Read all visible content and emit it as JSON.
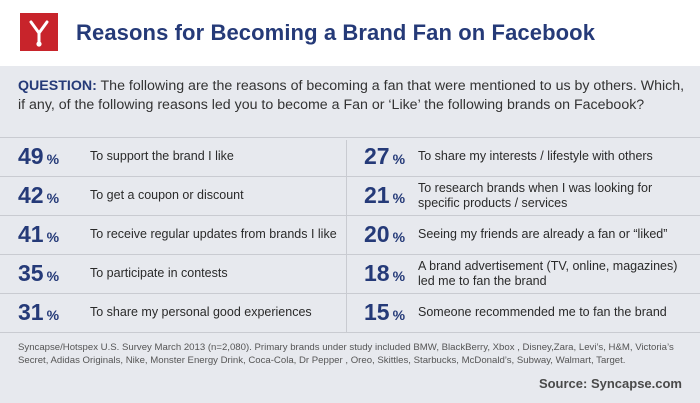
{
  "header": {
    "title": "Reasons for Becoming a Brand Fan on Facebook"
  },
  "question": {
    "lead": "QUESTION:",
    "text": "The following are the reasons of becoming a fan that were mentioned to us by others. Which, if any, of the following reasons led you to become a Fan or ‘Like’ the following brands on Facebook?"
  },
  "chart_data": {
    "type": "table",
    "title": "Reasons for Becoming a Brand Fan on Facebook",
    "unit": "%",
    "categories": [
      "To support the brand I like",
      "To get a coupon or discount",
      "To receive regular updates from brands I like",
      "To participate in contests",
      "To share my personal good experiences",
      "To share my interests / lifestyle with others",
      "To research brands when I was looking for specific products / services",
      "Seeing my friends are already a fan or “liked”",
      "A brand advertisement (TV, online, magazines) led me to fan the brand",
      "Someone recommended me to fan the brand"
    ],
    "values": [
      49,
      42,
      41,
      35,
      31,
      27,
      21,
      20,
      18,
      15
    ],
    "left": [
      {
        "value": "49",
        "unit": "%",
        "label": "To support the brand I like"
      },
      {
        "value": "42",
        "unit": "%",
        "label": "To get a coupon or discount"
      },
      {
        "value": "41",
        "unit": "%",
        "label": "To receive regular updates from brands I like"
      },
      {
        "value": "35",
        "unit": "%",
        "label": "To participate in contests"
      },
      {
        "value": "31",
        "unit": "%",
        "label": "To share my personal good experiences"
      }
    ],
    "right": [
      {
        "value": "27",
        "unit": "%",
        "label": "To share my interests / lifestyle with others"
      },
      {
        "value": "21",
        "unit": "%",
        "label": "To research brands when I was looking for specific products / services"
      },
      {
        "value": "20",
        "unit": "%",
        "label": "Seeing my friends are already a fan or “liked”"
      },
      {
        "value": "18",
        "unit": "%",
        "label": "A brand advertisement (TV, online, magazines) led me to fan the brand"
      },
      {
        "value": "15",
        "unit": "%",
        "label": "Someone recommended me to fan the brand"
      }
    ]
  },
  "footnote": "Syncapse/Hotspex U.S. Survey March 2013 (n=2,080). Primary brands under study included BMW, BlackBerry,  Xbox , Disney,Zara, Levi’s, H&M, Victoria’s Secret, Adidas Originals, Nike, Monster Energy Drink, Coca-Cola, Dr Pepper , Oreo, Skittles, Starbucks, McDonald’s, Subway,  Walmart, Target.",
  "source": "Source: Syncapse.com",
  "colors": {
    "brand_red": "#c8242b",
    "navy": "#253a78",
    "panel": "#e7e9ee"
  }
}
